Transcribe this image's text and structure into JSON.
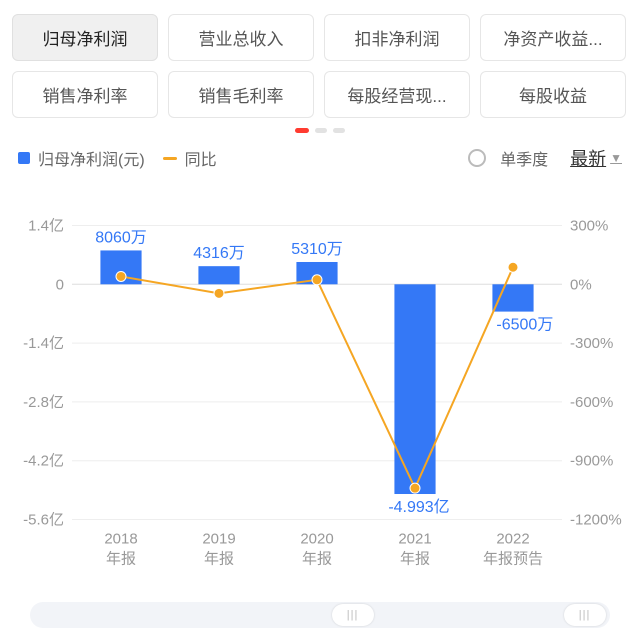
{
  "tabs": {
    "items": [
      {
        "label": "归母净利润",
        "active": true
      },
      {
        "label": "营业总收入",
        "active": false
      },
      {
        "label": "扣非净利润",
        "active": false
      },
      {
        "label": "净资产收益...",
        "active": false
      },
      {
        "label": "销售净利率",
        "active": false
      },
      {
        "label": "销售毛利率",
        "active": false
      },
      {
        "label": "每股经营现...",
        "active": false
      },
      {
        "label": "每股收益",
        "active": false
      }
    ],
    "page_dots": {
      "count": 3,
      "active": 0
    }
  },
  "legend": {
    "bar": {
      "label": "归母净利润(元)",
      "color": "#3478f6"
    },
    "line": {
      "label": "同比",
      "color": "#f5a623"
    },
    "quarter_label": "单季度",
    "latest_label": "最新"
  },
  "chart": {
    "type": "bar+line",
    "background": "#ffffff",
    "grid_color": "#eeeeee",
    "bar_color": "#3478f6",
    "line_color": "#f5a623",
    "marker_color": "#f5a623",
    "marker_size": 5,
    "line_width": 2,
    "bar_width_ratio": 0.42,
    "categories": [
      "2018",
      "2019",
      "2020",
      "2021",
      "2022"
    ],
    "x_sub": [
      "年报",
      "年报",
      "年报",
      "年报",
      "年报预告"
    ],
    "bar_values_yi": [
      0.806,
      0.4316,
      0.531,
      -4.993,
      -0.65
    ],
    "bar_labels": [
      "8060万",
      "4316万",
      "5310万",
      "-4.993亿",
      "-6500万"
    ],
    "line_values_pct": [
      40,
      -46,
      23,
      -1040,
      87
    ],
    "y_left": {
      "min": -5.6,
      "max": 1.4,
      "step": 1.4,
      "ticks": [
        1.4,
        0,
        -1.4,
        -2.8,
        -4.2,
        -5.6
      ],
      "tick_labels": [
        "1.4亿",
        "0",
        "-1.4亿",
        "-2.8亿",
        "-4.2亿",
        "-5.6亿"
      ]
    },
    "y_right": {
      "min": -1200,
      "max": 300,
      "step": 300,
      "ticks": [
        300,
        0,
        -300,
        -600,
        -900,
        -1200
      ],
      "tick_labels": [
        "300%",
        "0%",
        "-300%",
        "-600%",
        "-900%",
        "-1200%"
      ]
    }
  },
  "slider": {
    "left_pct": 52,
    "right_pct": 92
  }
}
